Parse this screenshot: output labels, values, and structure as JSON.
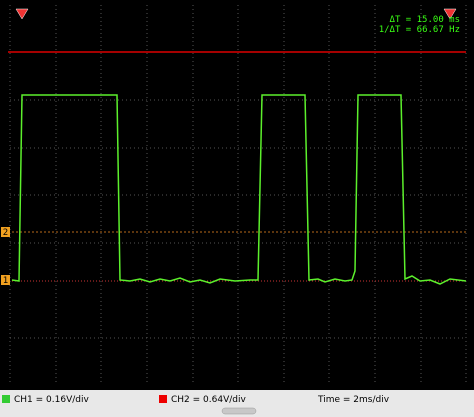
{
  "readout": {
    "delta_t": "ΔT =  15.00 ms",
    "inv_delta_t": "1/ΔT =  66.67 Hz"
  },
  "markers": {
    "ch1": "1",
    "ch2": "2"
  },
  "status": {
    "ch1": "CH1 = 0.16V/div",
    "ch2": "CH2 = 0.64V/div",
    "time": "Time = 2ms/div"
  }
}
